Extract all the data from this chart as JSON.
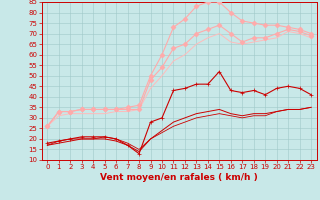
{
  "xlabel": "Vent moyen/en rafales ( km/h )",
  "xlim": [
    -0.5,
    23.5
  ],
  "ylim": [
    10,
    85
  ],
  "yticks": [
    10,
    15,
    20,
    25,
    30,
    35,
    40,
    45,
    50,
    55,
    60,
    65,
    70,
    75,
    80,
    85
  ],
  "xticks": [
    0,
    1,
    2,
    3,
    4,
    5,
    6,
    7,
    8,
    9,
    10,
    11,
    12,
    13,
    14,
    15,
    16,
    17,
    18,
    19,
    20,
    21,
    22,
    23
  ],
  "bg_color": "#c8e8e8",
  "grid_color": "#a0c8c8",
  "series": [
    {
      "x": [
        0,
        1,
        2,
        3,
        4,
        5,
        6,
        7,
        8,
        9,
        10,
        11,
        12,
        13,
        14,
        15,
        16,
        17,
        18,
        19,
        20,
        21,
        22,
        23
      ],
      "y": [
        18,
        19,
        20,
        21,
        21,
        21,
        20,
        17,
        13,
        28,
        30,
        43,
        44,
        46,
        46,
        52,
        43,
        42,
        43,
        41,
        44,
        45,
        44,
        41
      ],
      "color": "#cc0000",
      "lw": 0.8,
      "marker": "+",
      "ms": 3
    },
    {
      "x": [
        0,
        1,
        2,
        3,
        4,
        5,
        6,
        7,
        8,
        9,
        10,
        11,
        12,
        13,
        14,
        15,
        16,
        17,
        18,
        19,
        20,
        21,
        22,
        23
      ],
      "y": [
        17,
        18,
        19,
        20,
        20,
        20,
        19,
        17,
        14,
        20,
        24,
        28,
        30,
        32,
        33,
        34,
        32,
        31,
        32,
        32,
        33,
        34,
        34,
        35
      ],
      "color": "#cc0000",
      "lw": 0.7,
      "marker": null,
      "ms": 0
    },
    {
      "x": [
        0,
        1,
        2,
        3,
        4,
        5,
        6,
        7,
        8,
        9,
        10,
        11,
        12,
        13,
        14,
        15,
        16,
        17,
        18,
        19,
        20,
        21,
        22,
        23
      ],
      "y": [
        17,
        19,
        20,
        20,
        20,
        21,
        20,
        18,
        15,
        20,
        23,
        26,
        28,
        30,
        31,
        32,
        31,
        30,
        31,
        31,
        33,
        34,
        34,
        35
      ],
      "color": "#cc0000",
      "lw": 0.6,
      "marker": null,
      "ms": 0
    },
    {
      "x": [
        0,
        1,
        2,
        3,
        4,
        5,
        6,
        7,
        8,
        9,
        10,
        11,
        12,
        13,
        14,
        15,
        16,
        17,
        18,
        19,
        20,
        21,
        22,
        23
      ],
      "y": [
        26,
        33,
        33,
        34,
        34,
        34,
        34,
        34,
        34,
        48,
        54,
        63,
        65,
        70,
        72,
        74,
        70,
        66,
        68,
        68,
        70,
        72,
        71,
        69
      ],
      "color": "#ffaaaa",
      "lw": 0.8,
      "marker": "D",
      "ms": 2.5
    },
    {
      "x": [
        0,
        1,
        2,
        3,
        4,
        5,
        6,
        7,
        8,
        9,
        10,
        11,
        12,
        13,
        14,
        15,
        16,
        17,
        18,
        19,
        20,
        21,
        22,
        23
      ],
      "y": [
        26,
        31,
        32,
        32,
        32,
        32,
        33,
        33,
        34,
        44,
        50,
        57,
        60,
        65,
        68,
        70,
        66,
        65,
        66,
        67,
        68,
        71,
        70,
        68
      ],
      "color": "#ffbbbb",
      "lw": 0.7,
      "marker": null,
      "ms": 0
    },
    {
      "x": [
        0,
        1,
        2,
        3,
        4,
        5,
        6,
        7,
        8,
        9,
        10,
        11,
        12,
        13,
        14,
        15,
        16,
        17,
        18,
        19,
        20,
        21,
        22,
        23
      ],
      "y": [
        26,
        33,
        33,
        34,
        34,
        34,
        34,
        35,
        36,
        50,
        60,
        73,
        77,
        83,
        85,
        85,
        80,
        76,
        75,
        74,
        74,
        73,
        72,
        70
      ],
      "color": "#ffaaaa",
      "lw": 0.8,
      "marker": "D",
      "ms": 2.5
    }
  ],
  "tick_color": "#cc0000",
  "label_color": "#cc0000",
  "axis_color": "#cc0000",
  "xlabel_fontsize": 6.5,
  "tick_fontsize": 5.0
}
